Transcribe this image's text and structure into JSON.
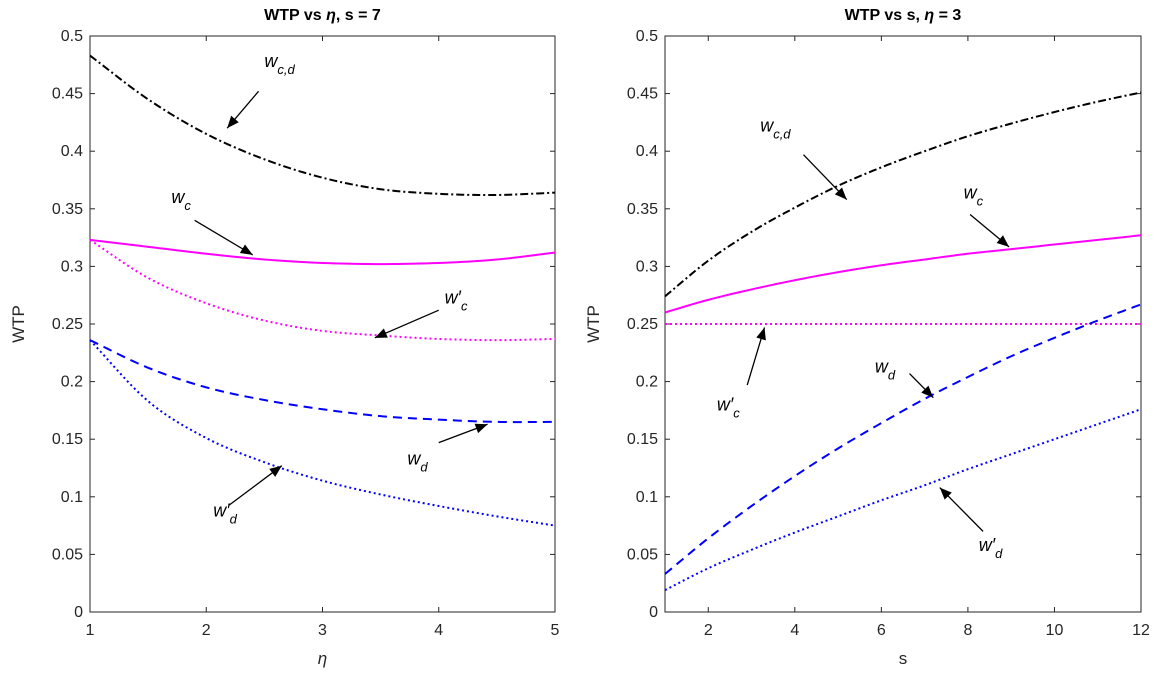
{
  "chart_data": [
    {
      "type": "line",
      "title_prefix": "WTP vs ",
      "title_symbol": "η",
      "title_suffix": ", s = 7",
      "xlabel": "η",
      "ylabel": "WTP",
      "xlim": [
        1,
        5
      ],
      "ylim": [
        0,
        0.5
      ],
      "xticks": [
        "1",
        "2",
        "3",
        "4",
        "5"
      ],
      "yticks": [
        "0",
        "0.05",
        "0.1",
        "0.15",
        "0.2",
        "0.25",
        "0.3",
        "0.35",
        "0.4",
        "0.45",
        "0.5"
      ],
      "series": [
        {
          "label_main": "w",
          "label_sub": "c,d",
          "prime": false,
          "color": "#000000",
          "dash": "8,3,2,3",
          "x": [
            1,
            1.5,
            2,
            2.5,
            3,
            3.5,
            4,
            4.5,
            5
          ],
          "y": [
            0.483,
            0.445,
            0.415,
            0.393,
            0.377,
            0.367,
            0.363,
            0.362,
            0.364
          ]
        },
        {
          "label_main": "w",
          "label_sub": "c",
          "prime": false,
          "color": "#ff00ff",
          "dash": "",
          "x": [
            1,
            1.5,
            2,
            2.5,
            3,
            3.5,
            4,
            4.5,
            5
          ],
          "y": [
            0.323,
            0.317,
            0.311,
            0.306,
            0.303,
            0.302,
            0.303,
            0.306,
            0.312
          ]
        },
        {
          "label_main": "w",
          "label_sub": "c",
          "prime": true,
          "color": "#ff00ff",
          "dash": "2,3",
          "x": [
            1,
            1.5,
            2,
            2.5,
            3,
            3.5,
            4,
            4.5,
            5
          ],
          "y": [
            0.323,
            0.29,
            0.268,
            0.253,
            0.244,
            0.24,
            0.237,
            0.236,
            0.237
          ]
        },
        {
          "label_main": "w",
          "label_sub": "d",
          "prime": false,
          "color": "#0000ff",
          "dash": "9,6",
          "x": [
            1,
            1.5,
            2,
            2.5,
            3,
            3.5,
            4,
            4.5,
            5
          ],
          "y": [
            0.236,
            0.212,
            0.195,
            0.184,
            0.176,
            0.17,
            0.167,
            0.165,
            0.165
          ]
        },
        {
          "label_main": "w",
          "label_sub": "d",
          "prime": true,
          "color": "#0000ff",
          "dash": "2,3",
          "x": [
            1,
            1.5,
            2,
            2.5,
            3,
            3.5,
            4,
            4.5,
            5
          ],
          "y": [
            0.236,
            0.183,
            0.151,
            0.13,
            0.114,
            0.102,
            0.092,
            0.083,
            0.075
          ]
        }
      ],
      "annotations": [
        {
          "main": "w",
          "sub": "c,d",
          "prime": false,
          "tx": 2.5,
          "ty": 0.473,
          "ax": 2.45,
          "ay": 0.452,
          "bx": 2.18,
          "by": 0.42
        },
        {
          "main": "w",
          "sub": "c",
          "prime": false,
          "tx": 1.7,
          "ty": 0.355,
          "ax": 1.9,
          "ay": 0.34,
          "bx": 2.4,
          "by": 0.31
        },
        {
          "main": "w",
          "sub": "c",
          "prime": true,
          "tx": 4.05,
          "ty": 0.268,
          "ax": 4.0,
          "ay": 0.262,
          "bx": 3.45,
          "by": 0.238
        },
        {
          "main": "w",
          "sub": "d",
          "prime": false,
          "tx": 3.73,
          "ty": 0.128,
          "ax": 4.0,
          "ay": 0.147,
          "bx": 4.42,
          "by": 0.163
        },
        {
          "main": "w",
          "sub": "d",
          "prime": true,
          "tx": 2.06,
          "ty": 0.083,
          "ax": 2.2,
          "ay": 0.093,
          "bx": 2.65,
          "by": 0.127
        }
      ]
    },
    {
      "type": "line",
      "title_prefix": "WTP vs s, ",
      "title_symbol": "η",
      "title_suffix": " = 3",
      "xlabel": "s",
      "ylabel": "WTP",
      "xlim": [
        1,
        12
      ],
      "ylim": [
        0,
        0.5
      ],
      "xticks": [
        "2",
        "4",
        "6",
        "8",
        "10",
        "12"
      ],
      "yticks": [
        "0",
        "0.05",
        "0.1",
        "0.15",
        "0.2",
        "0.25",
        "0.3",
        "0.35",
        "0.4",
        "0.45",
        "0.5"
      ],
      "series": [
        {
          "label_main": "w",
          "label_sub": "c,d",
          "prime": false,
          "color": "#000000",
          "dash": "8,3,2,3",
          "x": [
            1,
            2,
            3,
            4,
            5,
            6,
            7,
            8,
            9,
            10,
            11,
            12
          ],
          "y": [
            0.274,
            0.305,
            0.33,
            0.351,
            0.37,
            0.386,
            0.4,
            0.413,
            0.424,
            0.434,
            0.443,
            0.451
          ]
        },
        {
          "label_main": "w",
          "label_sub": "c",
          "prime": false,
          "color": "#ff00ff",
          "dash": "",
          "x": [
            1,
            2,
            3,
            4,
            5,
            6,
            7,
            8,
            9,
            10,
            11,
            12
          ],
          "y": [
            0.26,
            0.271,
            0.28,
            0.288,
            0.295,
            0.301,
            0.306,
            0.311,
            0.315,
            0.319,
            0.323,
            0.327
          ]
        },
        {
          "label_main": "w",
          "label_sub": "c",
          "prime": true,
          "color": "#ff00ff",
          "dash": "2,3",
          "x": [
            1,
            12
          ],
          "y": [
            0.25,
            0.25
          ]
        },
        {
          "label_main": "w",
          "label_sub": "d",
          "prime": false,
          "color": "#0000ff",
          "dash": "9,6",
          "x": [
            1,
            2,
            3,
            4,
            5,
            6,
            7,
            8,
            9,
            10,
            11,
            12
          ],
          "y": [
            0.033,
            0.064,
            0.092,
            0.118,
            0.142,
            0.164,
            0.185,
            0.204,
            0.222,
            0.238,
            0.253,
            0.267
          ]
        },
        {
          "label_main": "w",
          "label_sub": "d",
          "prime": true,
          "color": "#0000ff",
          "dash": "2,3",
          "x": [
            1,
            2,
            3,
            4,
            5,
            6,
            7,
            8,
            9,
            10,
            11,
            12
          ],
          "y": [
            0.019,
            0.038,
            0.054,
            0.069,
            0.083,
            0.097,
            0.11,
            0.124,
            0.137,
            0.15,
            0.163,
            0.176
          ]
        }
      ],
      "annotations": [
        {
          "main": "w",
          "sub": "c,d",
          "prime": false,
          "tx": 3.2,
          "ty": 0.417,
          "ax": 4.2,
          "ay": 0.397,
          "bx": 5.2,
          "by": 0.358
        },
        {
          "main": "w",
          "sub": "c",
          "prime": false,
          "tx": 7.9,
          "ty": 0.359,
          "ax": 8.05,
          "ay": 0.345,
          "bx": 8.95,
          "by": 0.317
        },
        {
          "main": "w",
          "sub": "c",
          "prime": true,
          "tx": 2.2,
          "ty": 0.175,
          "ax": 2.9,
          "ay": 0.197,
          "bx": 3.3,
          "by": 0.247
        },
        {
          "main": "w",
          "sub": "d",
          "prime": false,
          "tx": 5.85,
          "ty": 0.208,
          "ax": 6.65,
          "ay": 0.207,
          "bx": 7.2,
          "by": 0.186
        },
        {
          "main": "w",
          "sub": "d",
          "prime": true,
          "tx": 8.25,
          "ty": 0.053,
          "ax": 8.35,
          "ay": 0.07,
          "bx": 7.35,
          "by": 0.108
        }
      ]
    }
  ]
}
